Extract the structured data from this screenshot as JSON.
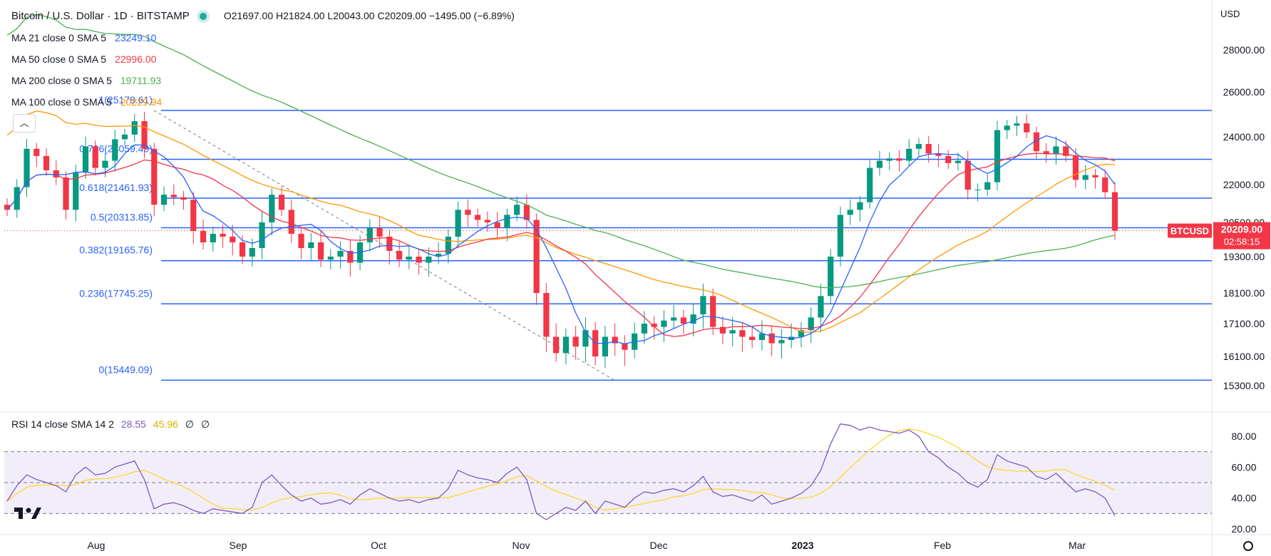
{
  "header": {
    "title": "Bitcoin / U.S. Dollar · 1D · BITSTAMP",
    "ohlc": "O21697.00  H21824.00  L20043.00  C20209.00  −1495.00 (−6.89%)",
    "currency": "USD"
  },
  "indicators": [
    {
      "label": "MA 21 close 0 SMA 5",
      "value": "23249.10",
      "color": "#2962ff"
    },
    {
      "label": "MA 50 close 0 SMA 5",
      "value": "22996.00",
      "color": "#f23645"
    },
    {
      "label": "MA 200 close 0 SMA 5",
      "value": "19711.93",
      "color": "#4caf50"
    },
    {
      "label": "MA 100 close 0 SMA 5",
      "value": "20229.94",
      "color": "#ff9800"
    }
  ],
  "rsi_legend": {
    "label": "RSI 14 close SMA 14 2",
    "rsi": "28.55",
    "sma": "45.96",
    "extra1": "∅",
    "extra2": "∅"
  },
  "price_badge": {
    "symbol": "BTCUSD",
    "price": "20209.00",
    "countdown": "02:58:15"
  },
  "colors": {
    "up": "#089981",
    "down": "#f23645",
    "fib": "#2962ff",
    "rsi": "#7e57c2",
    "rsi_sma": "#ffd630"
  },
  "chart_data": {
    "type": "candlestick",
    "symbol": "BTCUSD",
    "timeframe": "1D",
    "x_axis_labels": [
      "Aug",
      "Sep",
      "Oct",
      "Nov",
      "Dec",
      "2023",
      "Feb",
      "Mar"
    ],
    "y_ticks": [
      28000,
      26000,
      24000,
      22000,
      20500,
      19300,
      18100,
      17100,
      16100,
      15300
    ],
    "y_tick_labels": [
      "28000.00",
      "26000.00",
      "24000.00",
      "22000.00",
      "20500.00",
      "19300.00",
      "18100.00",
      "17100.00",
      "16100.00",
      "15300.00"
    ],
    "fib_levels": [
      {
        "label": "0.786(23059.49)",
        "value": 23059.49
      },
      {
        "label": "0.618(21461.93)",
        "value": 21461.93
      },
      {
        "label": "0.5(20313.85)",
        "value": 20313.85
      },
      {
        "label": "0.382(19165.76)",
        "value": 19165.76
      },
      {
        "label": "0.236(17745.25)",
        "value": 17745.25
      },
      {
        "label": "0(15449.09)",
        "value": 15449.09
      },
      {
        "label": "1(25178.61)",
        "value": 25178.61
      }
    ],
    "current_price": 20209.0,
    "closes_sampled": [
      21000,
      21900,
      23500,
      23200,
      22600,
      22300,
      21000,
      22500,
      23600,
      22700,
      23000,
      23900,
      24100,
      24700,
      23500,
      21200,
      21600,
      21500,
      21400,
      20200,
      19800,
      20100,
      20000,
      19800,
      19300,
      19600,
      20500,
      21600,
      21000,
      20100,
      19600,
      19800,
      19200,
      19300,
      19500,
      19100,
      19800,
      20300,
      20000,
      19500,
      19200,
      19300,
      19100,
      19300,
      19400,
      20000,
      21000,
      20800,
      20600,
      20500,
      20300,
      20800,
      21200,
      20600,
      18100,
      16700,
      16200,
      16700,
      16400,
      16900,
      16100,
      16700,
      16500,
      16300,
      16800,
      17100,
      17000,
      17200,
      17300,
      17100,
      17400,
      18000,
      17000,
      16800,
      16900,
      16700,
      16600,
      16800,
      16500,
      16600,
      16700,
      16900,
      17300,
      18000,
      19300,
      20800,
      21000,
      21300,
      22700,
      23000,
      23100,
      23000,
      23500,
      23700,
      23300,
      23200,
      22900,
      23000,
      21800,
      21800,
      22100,
      24300,
      24500,
      24600,
      24200,
      23400,
      23300,
      23600,
      23200,
      22200,
      22400,
      22300,
      21700,
      20209
    ],
    "moving_averages": [
      {
        "name": "MA 21",
        "last": 23249.1
      },
      {
        "name": "MA 50",
        "last": 22996.0
      },
      {
        "name": "MA 200",
        "last": 19711.93
      },
      {
        "name": "MA 100",
        "last": 20229.94
      }
    ],
    "rsi": {
      "y_ticks": [
        80,
        60,
        40,
        20
      ],
      "y_tick_labels": [
        "80.00",
        "60.00",
        "40.00",
        "20.00"
      ],
      "bands": [
        70,
        50,
        30
      ],
      "last_rsi": 28.55,
      "last_sma": 45.96,
      "values_sampled": [
        38,
        48,
        55,
        52,
        50,
        48,
        44,
        55,
        60,
        55,
        56,
        60,
        62,
        64,
        52,
        33,
        36,
        37,
        35,
        32,
        30,
        33,
        32,
        31,
        30,
        34,
        50,
        55,
        48,
        42,
        38,
        40,
        36,
        37,
        39,
        36,
        42,
        46,
        43,
        40,
        38,
        39,
        37,
        39,
        40,
        46,
        58,
        55,
        53,
        52,
        50,
        56,
        60,
        52,
        30,
        26,
        30,
        34,
        32,
        38,
        30,
        38,
        36,
        34,
        40,
        44,
        43,
        45,
        46,
        44,
        48,
        54,
        44,
        41,
        42,
        40,
        38,
        42,
        36,
        38,
        40,
        43,
        48,
        58,
        75,
        88,
        87,
        84,
        86,
        84,
        83,
        82,
        84,
        80,
        70,
        66,
        60,
        56,
        50,
        47,
        52,
        68,
        64,
        62,
        60,
        54,
        52,
        56,
        50,
        44,
        46,
        44,
        40,
        28.55
      ]
    }
  }
}
